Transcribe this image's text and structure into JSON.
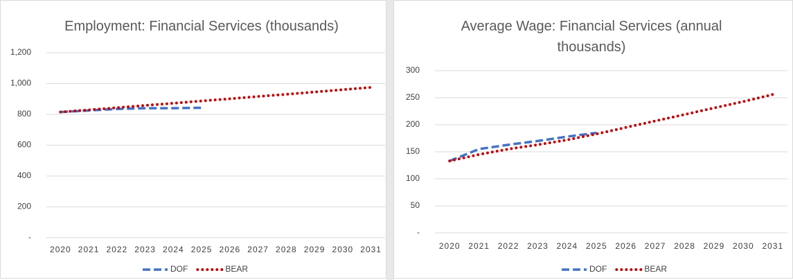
{
  "chart_data": [
    {
      "type": "line",
      "title": "Employment: Financial Services (thousands)",
      "categories": [
        "2020",
        "2021",
        "2022",
        "2023",
        "2024",
        "2025",
        "2026",
        "2027",
        "2028",
        "2029",
        "2030",
        "2031"
      ],
      "series": [
        {
          "name": "DOF",
          "color": "#4472c4",
          "style": "dashed",
          "values": [
            815,
            825,
            835,
            840,
            840,
            843,
            null,
            null,
            null,
            null,
            null,
            null
          ]
        },
        {
          "name": "BEAR",
          "color": "#c00000",
          "style": "dotted",
          "values": [
            815,
            829,
            843,
            858,
            872,
            887,
            901,
            916,
            930,
            945,
            960,
            975
          ]
        }
      ],
      "ylim": [
        0,
        1200
      ],
      "yticks": [
        {
          "value": 0,
          "label": "-"
        },
        200,
        400,
        600,
        800,
        {
          "value": 1000,
          "label": "1,000"
        },
        {
          "value": 1200,
          "label": "1,200"
        }
      ],
      "grid": true,
      "legend": "bottom"
    },
    {
      "type": "line",
      "title": "Average Wage: Financial Services (annual thousands)",
      "categories": [
        "2020",
        "2021",
        "2022",
        "2023",
        "2024",
        "2025",
        "2026",
        "2027",
        "2028",
        "2029",
        "2030",
        "2031"
      ],
      "series": [
        {
          "name": "DOF",
          "color": "#4472c4",
          "style": "dashed",
          "values": [
            133,
            155,
            163,
            170,
            178,
            185,
            null,
            null,
            null,
            null,
            null,
            null
          ]
        },
        {
          "name": "BEAR",
          "color": "#c00000",
          "style": "dotted",
          "values": [
            133,
            145,
            155,
            163,
            172,
            183,
            195,
            207,
            219,
            231,
            243,
            256
          ]
        }
      ],
      "ylim": [
        0,
        300
      ],
      "yticks": [
        {
          "value": 0,
          "label": "-"
        },
        50,
        100,
        150,
        200,
        250,
        300
      ],
      "grid": true,
      "legend": "bottom"
    }
  ]
}
